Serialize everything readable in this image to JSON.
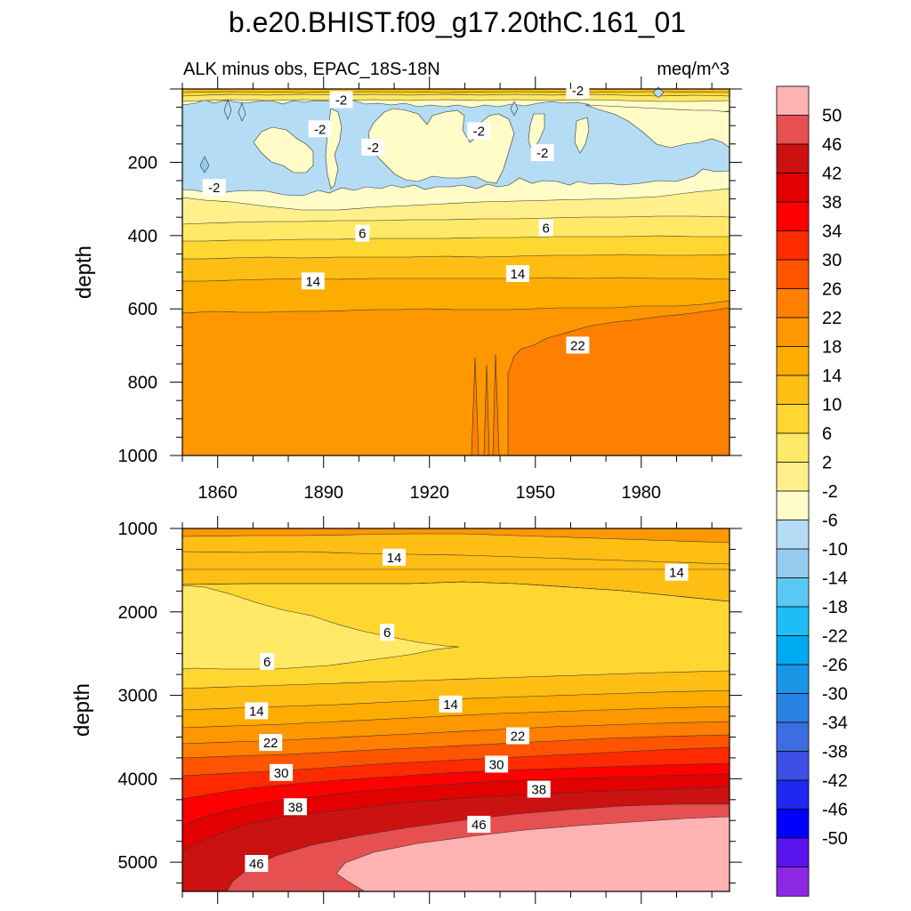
{
  "figure": {
    "title": "b.e20.BHIST.f09_g17.20thC.161_01"
  },
  "chart_data": {
    "type": "heatmap",
    "subtitle_left": "ALK minus obs, EPAC_18S-18N",
    "subtitle_right": "meq/m^3",
    "colorbar": {
      "labels": [
        "50",
        "46",
        "42",
        "38",
        "34",
        "30",
        "26",
        "22",
        "18",
        "14",
        "10",
        "6",
        "2",
        "-2",
        "-6",
        "-10",
        "-14",
        "-18",
        "-22",
        "-26",
        "-30",
        "-34",
        "-38",
        "-42",
        "-46",
        "-50"
      ],
      "colors": [
        "#ffb2b2",
        "#e65050",
        "#cc1111",
        "#e20000",
        "#ff0000",
        "#ff2a00",
        "#ff5400",
        "#ff7f00",
        "#ff9700",
        "#ffac00",
        "#ffbe14",
        "#ffd730",
        "#ffe966",
        "#fff08c",
        "#fffcc8",
        "#b4dcf5",
        "#96cbf0",
        "#5ac8f5",
        "#1ebef5",
        "#00aaf0",
        "#1996e6",
        "#2882e1",
        "#3c6ee1",
        "#3c50e6",
        "#1e28f0",
        "#0000ff",
        "#5a14f0",
        "#8c28e6"
      ]
    },
    "panels": [
      {
        "id": "upper",
        "ylabel": "depth",
        "xlabel": "",
        "xlim": [
          1850,
          2005
        ],
        "ylim": [
          1000,
          0
        ],
        "xticks": [
          1860,
          1890,
          1920,
          1950,
          1980
        ],
        "yticks": [
          200,
          400,
          600,
          800,
          1000
        ],
        "contour_labels": [
          {
            "text": "-2",
            "x": 1895,
            "y": 30
          },
          {
            "text": "-2",
            "x": 1889,
            "y": 110
          },
          {
            "text": "-2",
            "x": 1904,
            "y": 160
          },
          {
            "text": "-2",
            "x": 1934,
            "y": 115
          },
          {
            "text": "-2",
            "x": 1962,
            "y": 5
          },
          {
            "text": "-2",
            "x": 1952,
            "y": 175
          },
          {
            "text": "-2",
            "x": 1859,
            "y": 270
          },
          {
            "text": "6",
            "x": 1901,
            "y": 395
          },
          {
            "text": "6",
            "x": 1953,
            "y": 380
          },
          {
            "text": "14",
            "x": 1887,
            "y": 525
          },
          {
            "text": "14",
            "x": 1945,
            "y": 505
          },
          {
            "text": "22",
            "x": 1962,
            "y": 700
          }
        ]
      },
      {
        "id": "lower",
        "ylabel": "depth",
        "xlabel": "",
        "xlim": [
          1850,
          2005
        ],
        "ylim": [
          5350,
          1000
        ],
        "xticks": [],
        "yticks": [
          1000,
          2000,
          3000,
          4000,
          5000
        ],
        "contour_labels": [
          {
            "text": "14",
            "x": 1910,
            "y": 1350
          },
          {
            "text": "14",
            "x": 1990,
            "y": 1530
          },
          {
            "text": "6",
            "x": 1908,
            "y": 2250
          },
          {
            "text": "6",
            "x": 1874,
            "y": 2600
          },
          {
            "text": "14",
            "x": 1871,
            "y": 3190
          },
          {
            "text": "14",
            "x": 1926,
            "y": 3110
          },
          {
            "text": "22",
            "x": 1875,
            "y": 3570
          },
          {
            "text": "22",
            "x": 1945,
            "y": 3490
          },
          {
            "text": "30",
            "x": 1878,
            "y": 3930
          },
          {
            "text": "30",
            "x": 1939,
            "y": 3830
          },
          {
            "text": "38",
            "x": 1882,
            "y": 4340
          },
          {
            "text": "38",
            "x": 1951,
            "y": 4130
          },
          {
            "text": "46",
            "x": 1934,
            "y": 4550
          },
          {
            "text": "46",
            "x": 1871,
            "y": 5020
          }
        ]
      }
    ]
  }
}
